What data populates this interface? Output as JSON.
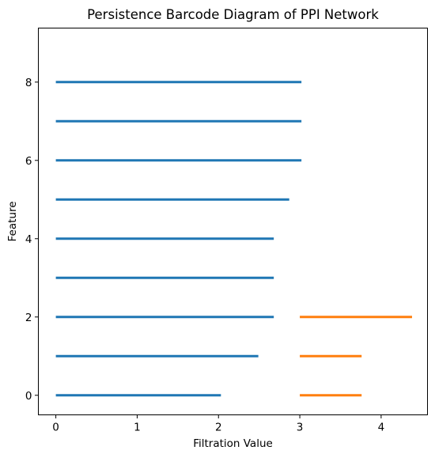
{
  "chart_data": {
    "type": "barcode",
    "title": "Persistence Barcode Diagram of PPI Network",
    "xlabel": "Filtration Value",
    "ylabel": "Feature",
    "xlim": [
      -0.215,
      4.57
    ],
    "ylim": [
      -0.5,
      9.38
    ],
    "x_ticks": [
      0,
      1,
      2,
      3,
      4
    ],
    "y_ticks": [
      0,
      2,
      4,
      6,
      8
    ],
    "grid": false,
    "series": [
      {
        "color": "#1f77b4",
        "bars": [
          {
            "feature": 0,
            "birth": 0,
            "death": 2.03
          },
          {
            "feature": 1,
            "birth": 0,
            "death": 2.49
          },
          {
            "feature": 2,
            "birth": 0,
            "death": 2.68
          },
          {
            "feature": 3,
            "birth": 0,
            "death": 2.68
          },
          {
            "feature": 4,
            "birth": 0,
            "death": 2.68
          },
          {
            "feature": 5,
            "birth": 0,
            "death": 2.87
          },
          {
            "feature": 6,
            "birth": 0,
            "death": 3.02
          },
          {
            "feature": 7,
            "birth": 0,
            "death": 3.02
          },
          {
            "feature": 8,
            "birth": 0,
            "death": 3.02
          }
        ]
      },
      {
        "color": "#ff7f0e",
        "bars": [
          {
            "feature": 0,
            "birth": 3.0,
            "death": 3.76
          },
          {
            "feature": 1,
            "birth": 3.0,
            "death": 3.76
          },
          {
            "feature": 2,
            "birth": 3.0,
            "death": 4.38
          }
        ]
      }
    ]
  }
}
